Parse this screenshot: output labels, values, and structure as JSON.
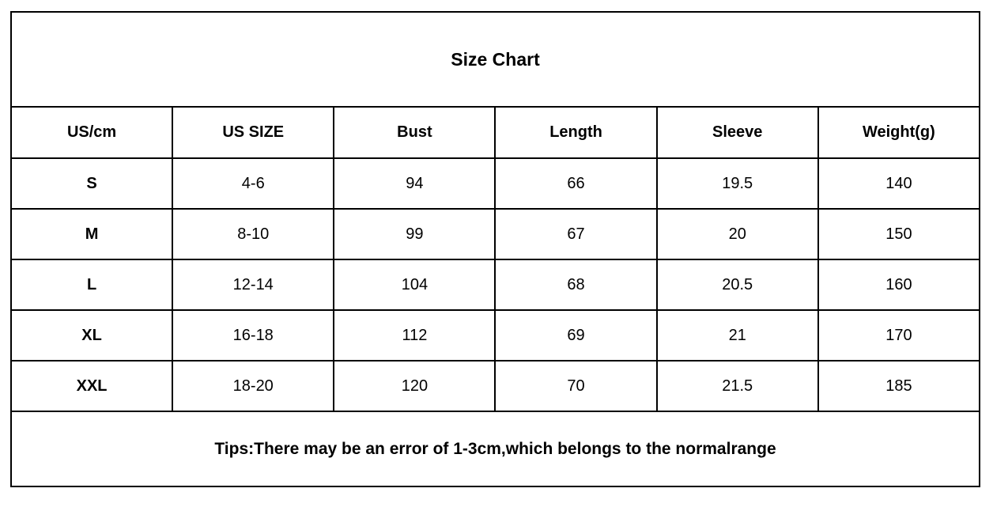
{
  "chart_data": {
    "type": "table",
    "title": "Size Chart",
    "columns": [
      "US/cm",
      "US SIZE",
      "Bust",
      "Length",
      "Sleeve",
      "Weight(g)"
    ],
    "rows": [
      [
        "S",
        "4-6",
        "94",
        "66",
        "19.5",
        "140"
      ],
      [
        "M",
        "8-10",
        "99",
        "67",
        "20",
        "150"
      ],
      [
        "L",
        "12-14",
        "104",
        "68",
        "20.5",
        "160"
      ],
      [
        "XL",
        "16-18",
        "112",
        "69",
        "21",
        "170"
      ],
      [
        "XXL",
        "18-20",
        "120",
        "70",
        "21.5",
        "185"
      ]
    ],
    "note": "Tips:There may be an error of 1-3cm,which belongs to the normalrange",
    "layout": {
      "grid": true,
      "border_color": "#000000",
      "background_color": "#ffffff",
      "text_color": "#000000"
    }
  }
}
